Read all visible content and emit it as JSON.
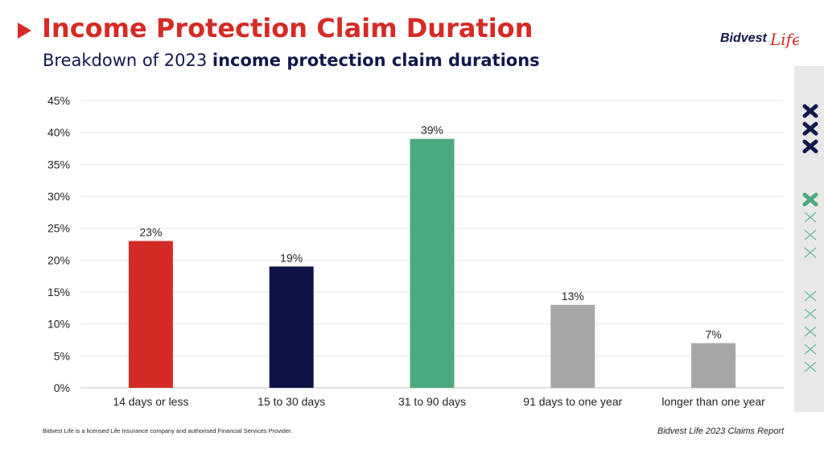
{
  "header": {
    "title": "Income Protection Claim Duration",
    "subtitle_plain": "Breakdown of 2023 ",
    "subtitle_bold": "income protection claim durations"
  },
  "logo": {
    "text_main": "Bidvest",
    "text_script": "Life",
    "color": "#d52b26",
    "main_color": "#12174a"
  },
  "side_icons": [
    "x-icon-navy",
    "x-icon-green-outline"
  ],
  "footer": {
    "disclaimer": "Bidvest Life is a licensed Life Insurance company and authorised Financial Services Provider.",
    "report": "Bidvest Life 2023 Claims Report"
  },
  "colors": {
    "red": "#d52b26",
    "navy": "#0f1446",
    "green": "#4ba97f",
    "grey": "#a6a6a6",
    "green_outline": "#6dbb9c"
  },
  "chart_data": {
    "type": "bar",
    "categories": [
      "14 days or less",
      "15 to 30 days",
      "31 to 90 days",
      "91 days to one year",
      "longer than one year"
    ],
    "values": [
      23,
      19,
      39,
      13,
      7
    ],
    "value_labels": [
      "23%",
      "19%",
      "39%",
      "13%",
      "7%"
    ],
    "bar_colors": [
      "#d52b26",
      "#0f1446",
      "#4ba97f",
      "#a6a6a6",
      "#a6a6a6"
    ],
    "ylim": [
      0,
      45
    ],
    "yticks": [
      "0%",
      "5%",
      "10%",
      "15%",
      "20%",
      "25%",
      "30%",
      "35%",
      "40%",
      "45%"
    ],
    "xlabel": "",
    "ylabel": "",
    "grid": true
  }
}
